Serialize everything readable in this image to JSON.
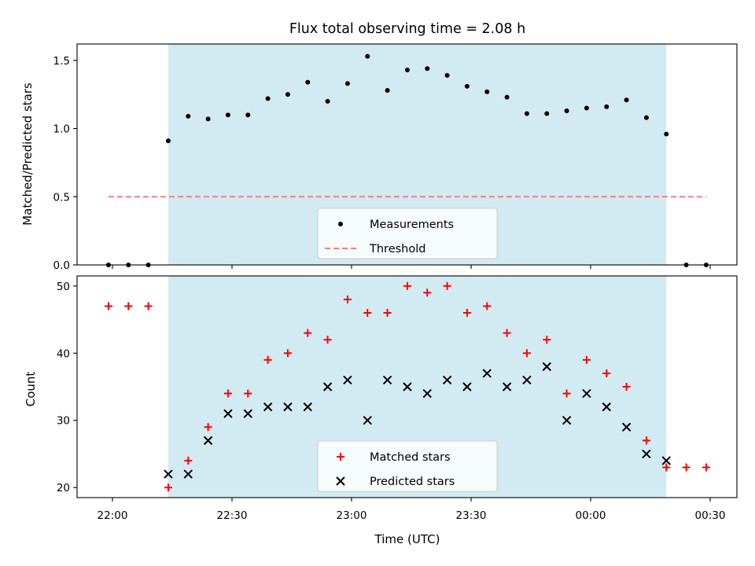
{
  "chart_data": [
    {
      "type": "scatter",
      "title": "Flux total observing time = 2.08 h",
      "xlabel": "",
      "ylabel": "Matched/Predicted stars",
      "ylim": [
        0,
        1.62
      ],
      "yticks": [
        "0.0",
        "0.5",
        "1.0",
        "1.5"
      ],
      "xticks": [
        "22:00",
        "22:30",
        "23:00",
        "23:30",
        "00:00",
        "00:30"
      ],
      "shaded_region_color": "#add8e6",
      "legend": {
        "placement": "bottom-center",
        "entries": [
          "Measurements",
          "Threshold"
        ]
      },
      "series": [
        {
          "name": "Measurements",
          "marker": "dot",
          "color": "#000000",
          "x": [
            "21:59",
            "22:04",
            "22:09",
            "22:14",
            "22:19",
            "22:24",
            "22:29",
            "22:34",
            "22:39",
            "22:44",
            "22:49",
            "22:54",
            "22:59",
            "23:04",
            "23:09",
            "23:14",
            "23:19",
            "23:24",
            "23:29",
            "23:34",
            "23:39",
            "23:44",
            "23:49",
            "23:54",
            "23:59",
            "00:04",
            "00:09",
            "00:14",
            "00:19",
            "00:24",
            "00:29"
          ],
          "values": [
            0.0,
            0.0,
            0.0,
            0.91,
            1.09,
            1.07,
            1.1,
            1.1,
            1.22,
            1.25,
            1.34,
            1.2,
            1.33,
            1.53,
            1.28,
            1.43,
            1.44,
            1.39,
            1.31,
            1.27,
            1.23,
            1.11,
            1.11,
            1.13,
            1.15,
            1.16,
            1.21,
            1.08,
            0.96,
            0.0,
            0.0
          ]
        },
        {
          "name": "Threshold",
          "marker": "dashed-line",
          "color": "#f08080",
          "x": [
            "21:59",
            "00:29"
          ],
          "values": [
            0.5,
            0.5
          ]
        }
      ]
    },
    {
      "type": "scatter",
      "title": "",
      "xlabel": "Time (UTC)",
      "ylabel": "Count",
      "ylim": [
        18.5,
        51.5
      ],
      "yticks": [
        "20",
        "30",
        "40",
        "50"
      ],
      "xticks": [
        "22:00",
        "22:30",
        "23:00",
        "23:30",
        "00:00",
        "00:30"
      ],
      "shaded_region_color": "#add8e6",
      "legend": {
        "placement": "bottom-center",
        "entries": [
          "Matched stars",
          "Predicted stars"
        ]
      },
      "series": [
        {
          "name": "Matched stars",
          "marker": "plus",
          "color": "#ff0000",
          "x": [
            "21:59",
            "22:04",
            "22:09",
            "22:14",
            "22:19",
            "22:24",
            "22:29",
            "22:34",
            "22:39",
            "22:44",
            "22:49",
            "22:54",
            "22:59",
            "23:04",
            "23:09",
            "23:14",
            "23:19",
            "23:24",
            "23:29",
            "23:34",
            "23:39",
            "23:44",
            "23:49",
            "23:54",
            "23:59",
            "00:04",
            "00:09",
            "00:14",
            "00:19",
            "00:24",
            "00:29"
          ],
          "values": [
            47,
            47,
            47,
            20,
            24,
            29,
            34,
            34,
            39,
            40,
            43,
            42,
            48,
            46,
            46,
            50,
            49,
            50,
            46,
            47,
            43,
            40,
            42,
            34,
            39,
            37,
            35,
            27,
            23,
            23,
            23
          ]
        },
        {
          "name": "Predicted stars",
          "marker": "x",
          "color": "#000000",
          "x": [
            "22:14",
            "22:19",
            "22:24",
            "22:29",
            "22:34",
            "22:39",
            "22:44",
            "22:49",
            "22:54",
            "22:59",
            "23:04",
            "23:09",
            "23:14",
            "23:19",
            "23:24",
            "23:29",
            "23:34",
            "23:39",
            "23:44",
            "23:49",
            "23:54",
            "23:59",
            "00:04",
            "00:09",
            "00:14",
            "00:19"
          ],
          "values": [
            22,
            22,
            27,
            31,
            31,
            32,
            32,
            32,
            35,
            36,
            30,
            36,
            35,
            34,
            36,
            35,
            37,
            35,
            36,
            38,
            30,
            34,
            32,
            29,
            25,
            24
          ]
        }
      ]
    }
  ]
}
